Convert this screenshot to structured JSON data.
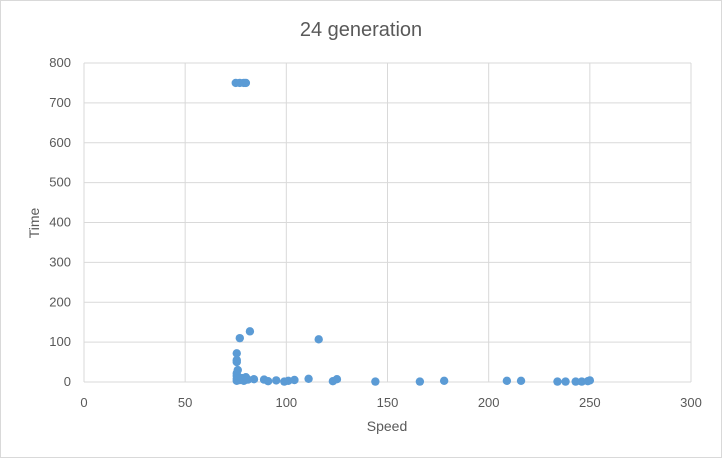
{
  "chart_data": {
    "type": "scatter",
    "title": "24 generation",
    "xlabel": "Speed",
    "ylabel": "Time",
    "xlim": [
      0,
      300
    ],
    "ylim": [
      0,
      800
    ],
    "xticks": [
      0,
      50,
      100,
      150,
      200,
      250,
      300
    ],
    "yticks": [
      0,
      100,
      200,
      300,
      400,
      500,
      600,
      700,
      800
    ],
    "grid": true,
    "marker_color": "#5b9bd5",
    "points": [
      {
        "x": 75,
        "y": 750
      },
      {
        "x": 77,
        "y": 750
      },
      {
        "x": 79,
        "y": 750
      },
      {
        "x": 80,
        "y": 750
      },
      {
        "x": 82,
        "y": 127
      },
      {
        "x": 77,
        "y": 110
      },
      {
        "x": 116,
        "y": 107
      },
      {
        "x": 75.5,
        "y": 72
      },
      {
        "x": 75.5,
        "y": 55
      },
      {
        "x": 75.5,
        "y": 50
      },
      {
        "x": 76,
        "y": 30
      },
      {
        "x": 75.5,
        "y": 22
      },
      {
        "x": 75.5,
        "y": 15
      },
      {
        "x": 75.5,
        "y": 8
      },
      {
        "x": 75.5,
        "y": 3
      },
      {
        "x": 77,
        "y": 5
      },
      {
        "x": 78,
        "y": 10
      },
      {
        "x": 79,
        "y": 3
      },
      {
        "x": 80,
        "y": 12
      },
      {
        "x": 81,
        "y": 6
      },
      {
        "x": 84,
        "y": 7
      },
      {
        "x": 89,
        "y": 6
      },
      {
        "x": 91,
        "y": 2
      },
      {
        "x": 95,
        "y": 4
      },
      {
        "x": 99,
        "y": 1
      },
      {
        "x": 101,
        "y": 3
      },
      {
        "x": 104,
        "y": 5
      },
      {
        "x": 111,
        "y": 8
      },
      {
        "x": 123,
        "y": 2
      },
      {
        "x": 125,
        "y": 7
      },
      {
        "x": 144,
        "y": 1
      },
      {
        "x": 166,
        "y": 1
      },
      {
        "x": 178,
        "y": 3
      },
      {
        "x": 209,
        "y": 3
      },
      {
        "x": 216,
        "y": 3
      },
      {
        "x": 234,
        "y": 1
      },
      {
        "x": 238,
        "y": 1
      },
      {
        "x": 243,
        "y": 1
      },
      {
        "x": 246,
        "y": 1
      },
      {
        "x": 249,
        "y": 2
      },
      {
        "x": 250,
        "y": 4
      }
    ]
  }
}
